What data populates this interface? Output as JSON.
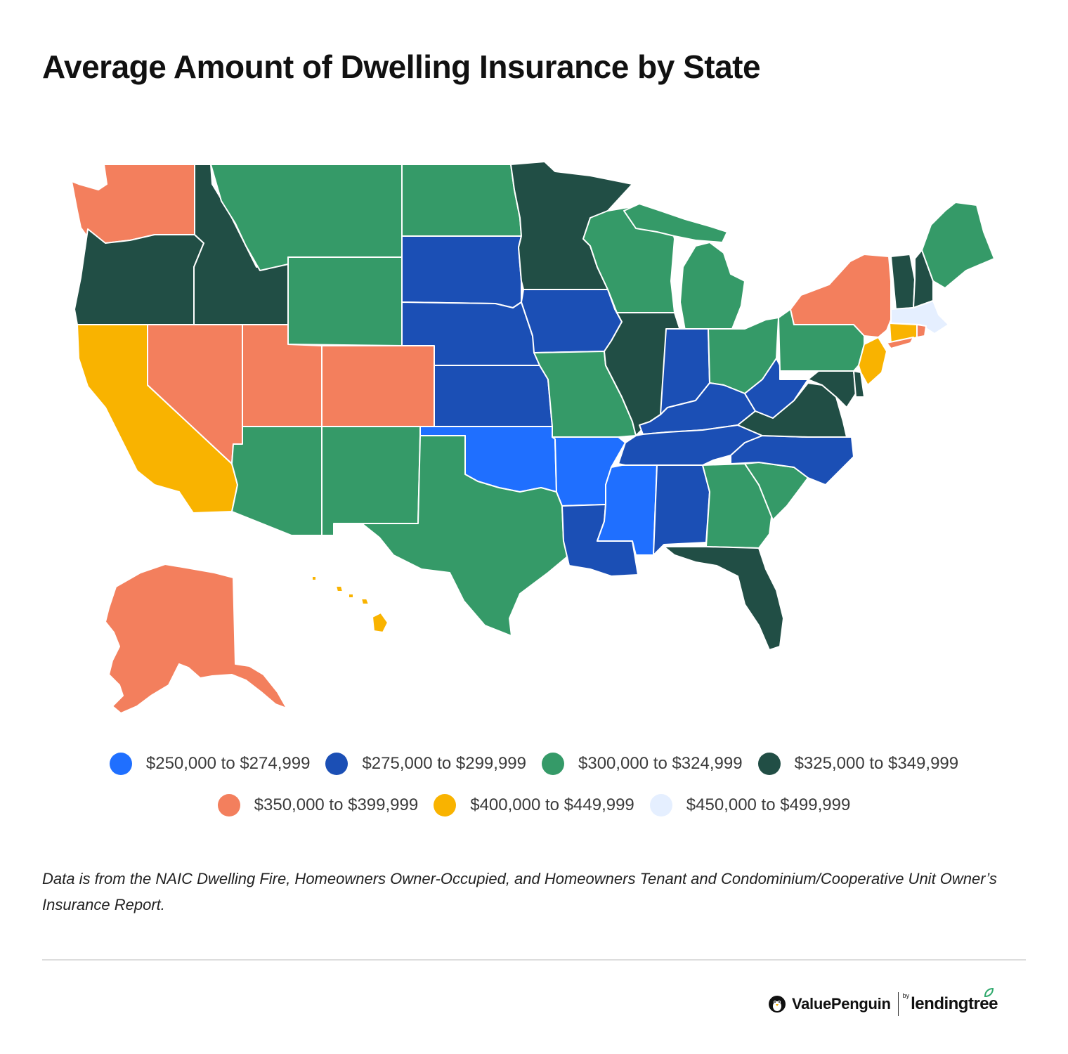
{
  "title": "Average Amount of Dwelling Insurance by State",
  "colors": {
    "tier1": "#1f6fff",
    "tier2": "#1b4fb5",
    "tier3": "#359a68",
    "tier4": "#214e45",
    "tier5": "#f37f5d",
    "tier6": "#f9b300",
    "tier7": "#e5efff"
  },
  "legend": [
    {
      "label": "$250,000 to $274,999",
      "color": "#1f6fff"
    },
    {
      "label": "$275,000 to $299,999",
      "color": "#1b4fb5"
    },
    {
      "label": "$300,000 to $324,999",
      "color": "#359a68"
    },
    {
      "label": "$325,000 to $349,999",
      "color": "#214e45"
    },
    {
      "label": "$350,000 to $399,999",
      "color": "#f37f5d"
    },
    {
      "label": "$400,000 to $449,999",
      "color": "#f9b300"
    },
    {
      "label": "$450,000 to $499,999",
      "color": "#e5efff"
    }
  ],
  "state_tiers": {
    "WA": "$350,000 to $399,999",
    "OR": "$325,000 to $349,999",
    "CA": "$400,000 to $449,999",
    "NV": "$350,000 to $399,999",
    "ID": "$325,000 to $349,999",
    "MT": "$300,000 to $324,999",
    "WY": "$300,000 to $324,999",
    "UT": "$350,000 to $399,999",
    "CO": "$350,000 to $399,999",
    "AZ": "$300,000 to $324,999",
    "NM": "$300,000 to $324,999",
    "ND": "$300,000 to $324,999",
    "SD": "$275,000 to $299,999",
    "NE": "$275,000 to $299,999",
    "KS": "$275,000 to $299,999",
    "OK": "$250,000 to $274,999",
    "TX": "$300,000 to $324,999",
    "MN": "$325,000 to $349,999",
    "IA": "$275,000 to $299,999",
    "MO": "$300,000 to $324,999",
    "AR": "$250,000 to $274,999",
    "LA": "$275,000 to $299,999",
    "WI": "$300,000 to $324,999",
    "IL": "$325,000 to $349,999",
    "MI": "$300,000 to $324,999",
    "IN": "$275,000 to $299,999",
    "OH": "$300,000 to $324,999",
    "KY": "$275,000 to $299,999",
    "TN": "$275,000 to $299,999",
    "MS": "$250,000 to $274,999",
    "AL": "$275,000 to $299,999",
    "GA": "$300,000 to $324,999",
    "FL": "$325,000 to $349,999",
    "SC": "$300,000 to $324,999",
    "NC": "$275,000 to $299,999",
    "VA": "$325,000 to $349,999",
    "WV": "$275,000 to $299,999",
    "PA": "$300,000 to $324,999",
    "NY": "$350,000 to $399,999",
    "VT": "$325,000 to $349,999",
    "NH": "$325,000 to $349,999",
    "ME": "$300,000 to $324,999",
    "MA": "$450,000 to $499,999",
    "CT": "$400,000 to $449,999",
    "RI": "$350,000 to $399,999",
    "NJ": "$400,000 to $449,999",
    "DE": "$325,000 to $349,999",
    "MD": "$325,000 to $349,999",
    "AK": "$350,000 to $399,999",
    "HI": "$400,000 to $449,999"
  },
  "footnote": "Data is from the NAIC Dwelling Fire, Homeowners Owner-Occupied, and Homeowners Tenant and Condominium/Cooperative Unit Owner’s Insurance Report.",
  "brand": {
    "name": "ValuePenguin",
    "by": "by",
    "partner": "lendingtree"
  }
}
